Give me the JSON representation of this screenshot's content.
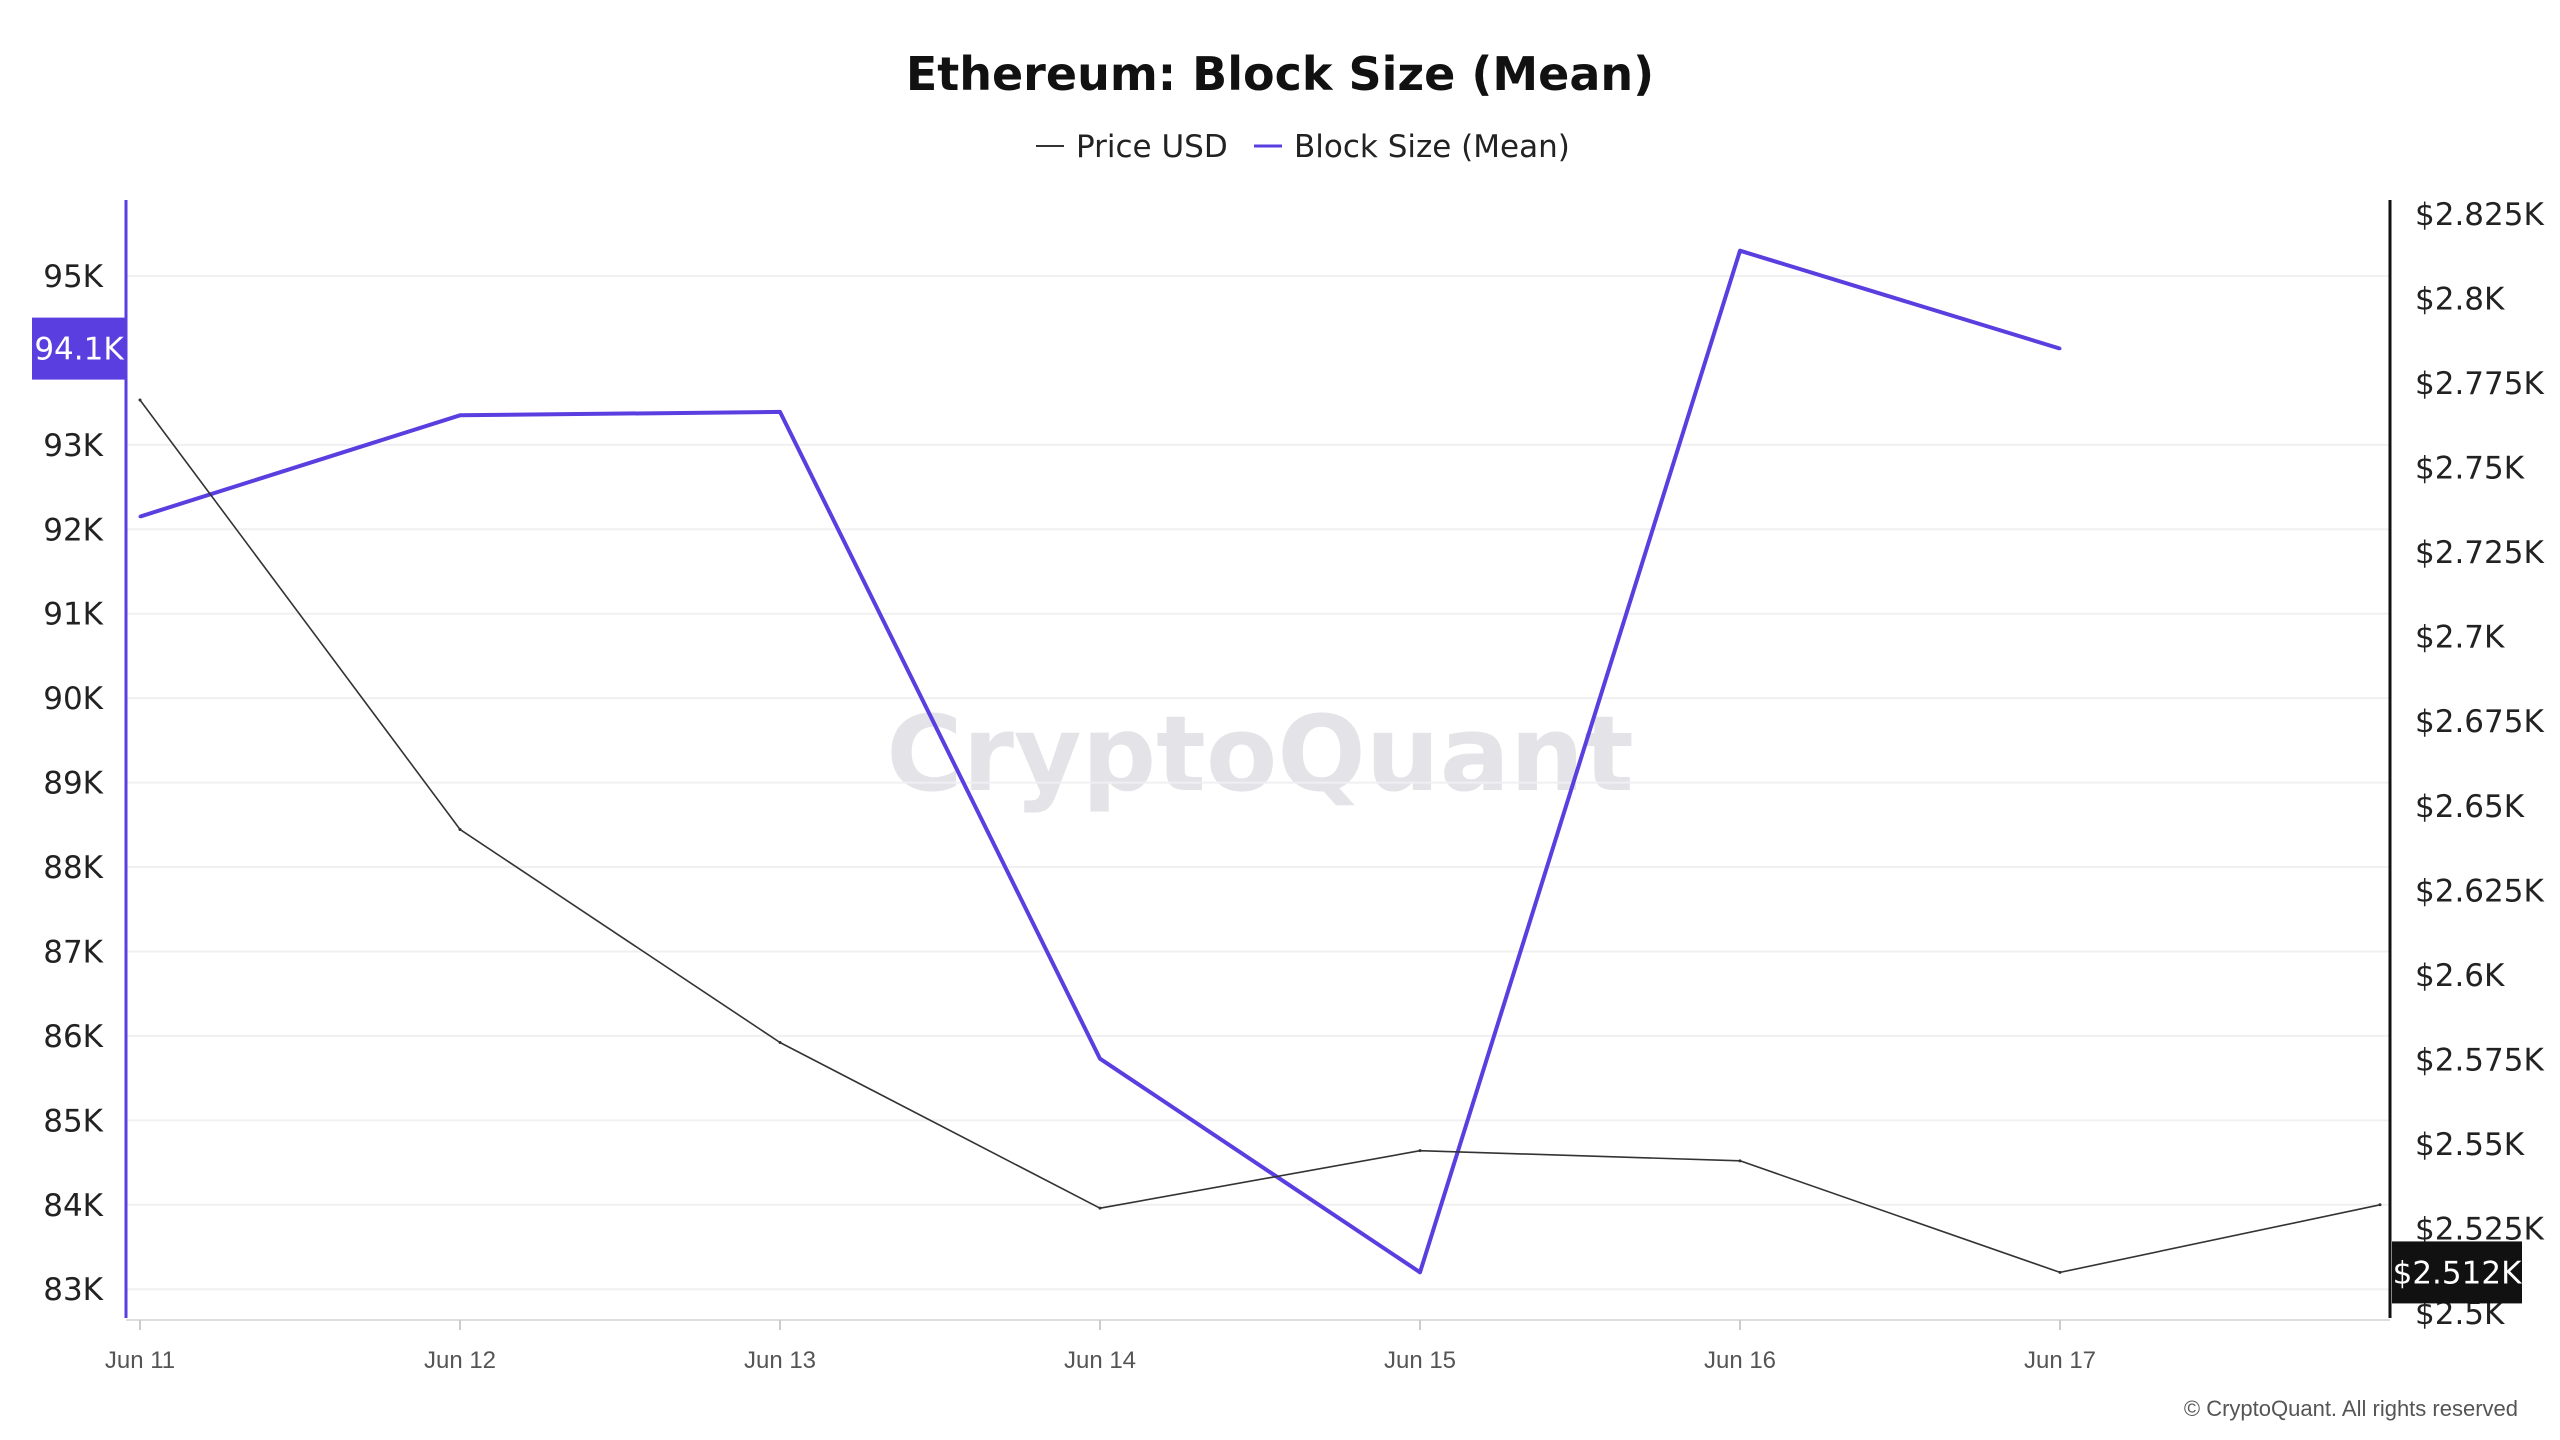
{
  "chart_data": {
    "type": "line",
    "title": "Ethereum: Block Size (Mean)",
    "categories": [
      "Jun 11",
      "Jun 12",
      "Jun 13",
      "Jun 14",
      "Jun 15",
      "Jun 16",
      "Jun 17"
    ],
    "legend": [
      {
        "label": "Price USD",
        "color": "#333333"
      },
      {
        "label": "Block Size (Mean)",
        "color": "#5a3ee0"
      }
    ],
    "series": [
      {
        "name": "Block Size (Mean)",
        "axis": "left",
        "color": "#5a3ee0",
        "x": [
          0,
          1,
          2,
          3,
          4,
          5,
          6
        ],
        "values": [
          92150,
          93350,
          93390,
          85730,
          83200,
          95300,
          94140
        ]
      },
      {
        "name": "Price USD",
        "axis": "right",
        "color": "#333333",
        "x": [
          0,
          1,
          2,
          3,
          4,
          5,
          6,
          7
        ],
        "values": [
          2770,
          2643,
          2580,
          2531,
          2548,
          2545,
          2512,
          2532
        ]
      }
    ],
    "left_axis": {
      "ticks": [
        83000,
        84000,
        85000,
        86000,
        87000,
        88000,
        89000,
        90000,
        91000,
        92000,
        93000,
        95000
      ],
      "tick_labels": [
        "83K",
        "84K",
        "85K",
        "86K",
        "87K",
        "88K",
        "89K",
        "90K",
        "91K",
        "92K",
        "93K",
        "95K"
      ],
      "range": [
        82600,
        95900
      ],
      "badge_value": 94140,
      "badge_label": "94.1K",
      "color": "#5a3ee0"
    },
    "right_axis": {
      "ticks": [
        2500,
        2525,
        2550,
        2575,
        2600,
        2625,
        2650,
        2675,
        2700,
        2725,
        2750,
        2775,
        2800,
        2825
      ],
      "tick_labels": [
        "$2.5K",
        "$2.525K",
        "$2.55K",
        "$2.575K",
        "$2.6K",
        "$2.625K",
        "$2.65K",
        "$2.675K",
        "$2.7K",
        "$2.725K",
        "$2.75K",
        "$2.775K",
        "$2.8K",
        "$2.825K"
      ],
      "range": [
        2500,
        2825
      ],
      "badge_value": 2512,
      "badge_label": "$2.512K",
      "color": "#111111"
    },
    "grid": true
  },
  "watermark": "CryptoQuant",
  "copyright": "© CryptoQuant. All rights reserved"
}
